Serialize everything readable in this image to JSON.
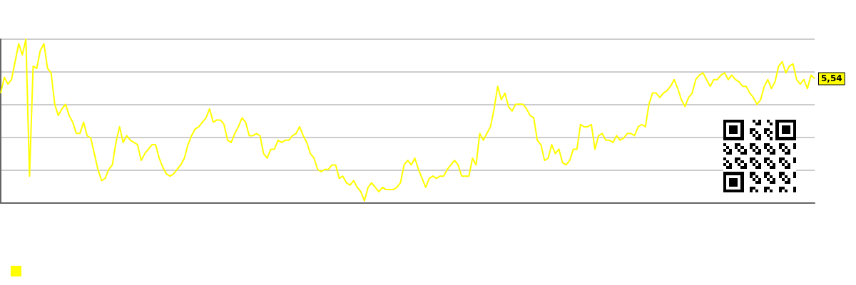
{
  "chart_data": {
    "type": "line",
    "grid": "y",
    "tick_labels": false,
    "ylim": [
      0,
      7.3
    ],
    "yticks": [
      {
        "value": 0,
        "label": null
      },
      {
        "value": 1.46,
        "label": null
      },
      {
        "value": 2.92,
        "label": null
      },
      {
        "value": 4.38,
        "label": null
      },
      {
        "value": 5.84,
        "label": null
      },
      {
        "value": 7.3,
        "label": null
      }
    ],
    "categories": [
      null,
      null,
      null,
      null,
      null,
      null,
      null,
      null,
      null,
      null,
      null,
      null,
      null,
      null,
      null,
      null,
      null,
      null,
      null,
      null,
      null,
      null,
      null,
      null,
      null,
      null,
      null,
      null,
      null,
      null,
      null,
      null,
      null,
      null,
      null,
      null,
      null,
      null,
      null,
      null,
      null,
      null,
      null,
      null,
      null,
      null,
      null,
      null,
      null,
      null,
      null,
      null,
      null,
      null,
      null,
      null,
      null,
      null,
      null,
      null,
      null,
      null,
      null,
      null,
      null,
      null,
      null,
      null,
      null,
      null,
      null,
      null,
      null,
      null,
      null,
      null,
      null,
      null,
      null,
      null,
      null,
      null,
      null,
      null,
      null,
      null,
      null,
      null,
      null,
      null,
      null,
      null,
      null,
      null,
      null,
      null,
      null,
      null,
      null,
      null,
      null,
      null,
      null,
      null,
      null,
      null,
      null,
      null,
      null,
      null,
      null,
      null,
      null,
      null,
      null,
      null,
      null,
      null,
      null,
      null,
      null,
      null,
      null,
      null,
      null,
      null,
      null,
      null,
      null,
      null,
      null,
      null,
      null,
      null,
      null,
      null,
      null,
      null,
      null,
      null,
      null,
      null,
      null,
      null,
      null,
      null,
      null,
      null,
      null,
      null,
      null,
      null,
      null,
      null,
      null,
      null,
      null,
      null,
      null,
      null,
      null,
      null,
      null,
      null,
      null,
      null,
      null,
      null,
      null,
      null,
      null,
      null,
      null,
      null,
      null,
      null,
      null,
      null,
      null,
      null,
      null,
      null,
      null,
      null,
      null,
      null,
      null,
      null,
      null,
      null,
      null,
      null,
      null,
      null,
      null,
      null,
      null,
      null,
      null,
      null,
      null,
      null,
      null,
      null,
      null,
      null,
      null,
      null,
      null,
      null,
      null,
      null,
      null,
      null,
      null,
      null,
      null,
      null,
      null,
      null,
      null,
      null,
      null,
      null,
      null,
      null,
      null
    ],
    "series": [
      {
        "color": "#ffff00",
        "values": [
          4.9,
          5.6,
          5.3,
          5.5,
          6.3,
          7.1,
          6.6,
          7.3,
          1.2,
          6.1,
          6.0,
          6.8,
          7.1,
          6.0,
          5.8,
          4.4,
          3.9,
          4.2,
          4.4,
          3.9,
          3.6,
          3.1,
          3.1,
          3.6,
          3.0,
          2.9,
          2.2,
          1.5,
          1.0,
          1.1,
          1.5,
          1.7,
          2.7,
          3.4,
          2.7,
          3.0,
          2.8,
          2.7,
          2.6,
          1.9,
          2.2,
          2.4,
          2.6,
          2.6,
          2.0,
          1.6,
          1.3,
          1.2,
          1.3,
          1.5,
          1.7,
          2.0,
          2.6,
          3.0,
          3.3,
          3.4,
          3.6,
          3.8,
          4.2,
          3.6,
          3.7,
          3.7,
          3.5,
          2.8,
          2.7,
          3.1,
          3.4,
          3.8,
          3.6,
          3.0,
          3.0,
          3.1,
          3.0,
          2.2,
          2.0,
          2.4,
          2.4,
          2.8,
          2.7,
          2.8,
          2.8,
          3.0,
          3.1,
          3.4,
          3.0,
          2.7,
          2.2,
          2.0,
          1.5,
          1.4,
          1.5,
          1.5,
          1.7,
          1.7,
          1.1,
          1.2,
          0.9,
          0.8,
          1.0,
          0.7,
          0.5,
          0.1,
          0.7,
          0.9,
          0.7,
          0.5,
          0.7,
          0.6,
          0.6,
          0.6,
          0.7,
          0.9,
          1.7,
          1.9,
          1.7,
          2.0,
          1.5,
          1.1,
          0.7,
          1.1,
          1.2,
          1.1,
          1.2,
          1.2,
          1.5,
          1.7,
          1.9,
          1.7,
          1.2,
          1.2,
          1.2,
          2.0,
          1.7,
          3.1,
          2.8,
          3.1,
          3.4,
          4.2,
          5.2,
          4.6,
          4.9,
          4.3,
          4.1,
          4.4,
          4.4,
          4.4,
          4.2,
          3.9,
          3.8,
          2.8,
          2.6,
          1.9,
          2.0,
          2.6,
          2.2,
          2.4,
          1.8,
          1.7,
          1.9,
          2.4,
          2.4,
          3.5,
          3.4,
          3.4,
          3.5,
          2.4,
          3.0,
          3.1,
          2.8,
          2.8,
          2.7,
          3.0,
          2.8,
          2.9,
          3.1,
          3.1,
          3.0,
          3.4,
          3.5,
          3.4,
          4.4,
          4.9,
          4.9,
          4.7,
          4.9,
          5.0,
          5.2,
          5.5,
          5.1,
          4.6,
          4.3,
          4.7,
          4.9,
          5.5,
          5.7,
          5.8,
          5.5,
          5.2,
          5.5,
          5.5,
          5.7,
          5.8,
          5.5,
          5.7,
          5.5,
          5.4,
          5.2,
          5.2,
          4.9,
          4.7,
          4.4,
          4.6,
          5.2,
          5.5,
          5.1,
          5.4,
          6.1,
          6.3,
          5.8,
          6.1,
          6.2,
          5.5,
          5.3,
          5.5,
          5.1,
          5.7,
          5.54
        ],
        "value_labels": [
          null,
          null,
          null,
          null,
          null,
          null,
          null,
          null,
          null,
          null,
          null,
          null,
          null,
          null,
          null,
          null,
          null,
          null,
          null,
          null,
          null,
          null,
          null,
          null,
          null,
          null,
          null,
          null,
          null,
          null,
          null,
          null,
          null,
          null,
          null,
          null,
          null,
          null,
          null,
          null,
          null,
          null,
          null,
          null,
          null,
          null,
          null,
          null,
          null,
          null,
          null,
          null,
          null,
          null,
          null,
          null,
          null,
          null,
          null,
          null,
          null,
          null,
          null,
          null,
          null,
          null,
          null,
          null,
          null,
          null,
          null,
          null,
          null,
          null,
          null,
          null,
          null,
          null,
          null,
          null,
          null,
          null,
          null,
          null,
          null,
          null,
          null,
          null,
          null,
          null,
          null,
          null,
          null,
          null,
          null,
          null,
          null,
          null,
          null,
          null,
          null,
          null,
          null,
          null,
          null,
          null,
          null,
          null,
          null,
          null,
          null,
          null,
          null,
          null,
          null,
          null,
          null,
          null,
          null,
          null,
          null,
          null,
          null,
          null,
          null,
          null,
          null,
          null,
          null,
          null,
          null,
          null,
          null,
          null,
          null,
          null,
          null,
          null,
          null,
          null,
          null,
          null,
          null,
          null,
          null,
          null,
          null,
          null,
          null,
          null,
          null,
          null,
          null,
          null,
          null,
          null,
          null,
          null,
          null,
          null,
          null,
          null,
          null,
          null,
          null,
          null,
          null,
          null,
          null,
          null,
          null,
          null,
          null,
          null,
          null,
          null,
          null,
          null,
          null,
          null,
          null,
          null,
          null,
          null,
          null,
          null,
          null,
          null,
          null,
          null,
          null,
          null,
          null,
          null,
          null,
          null,
          null,
          null,
          null,
          null,
          null,
          null,
          null,
          null,
          null,
          null,
          null,
          null,
          null,
          null,
          null,
          null,
          null,
          null,
          null,
          null,
          null,
          null,
          null,
          null,
          null,
          null,
          null,
          null,
          null,
          null,
          "5,54"
        ]
      }
    ]
  }
}
